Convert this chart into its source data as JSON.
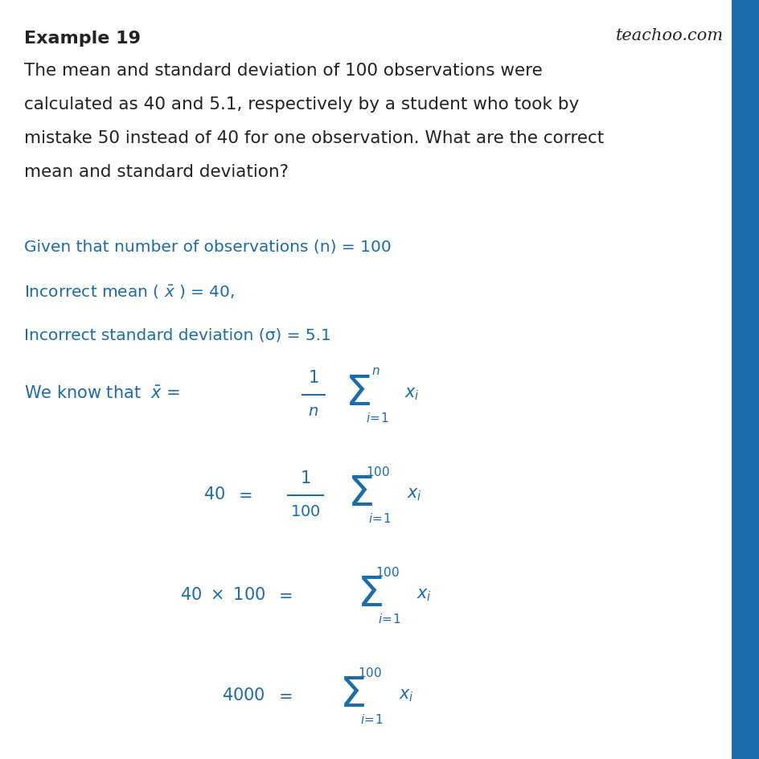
{
  "title": "Example 19",
  "watermark": "teachoo.com",
  "body_lines": [
    "The mean and standard deviation of 100 observations were",
    "calculated as 40 and 5.1, respectively by a student who took by",
    "mistake 50 instead of 40 for one observation. What are the correct",
    "mean and standard deviation?"
  ],
  "blue_color": "#1B6CA8",
  "black_color": "#222222",
  "bg_color": "#ffffff",
  "sidebar_color": "#1B6CA8",
  "line1": "Given that number of observations (n) = 100",
  "line3": "Incorrect standard deviation (σ) = 5.1"
}
